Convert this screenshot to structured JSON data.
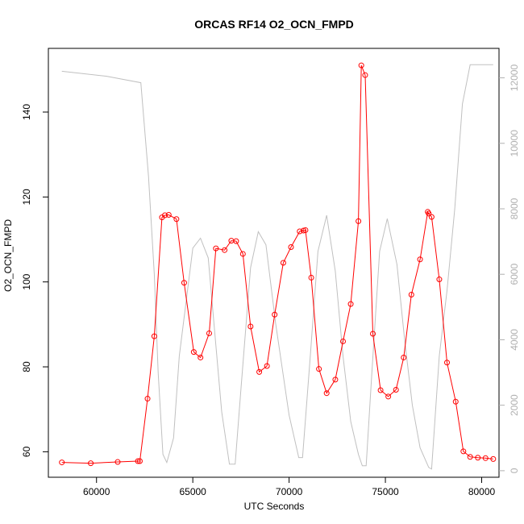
{
  "chart_data": {
    "type": "line",
    "title": "ORCAS RF14 O2_OCN_FMPD",
    "xlabel": "UTC Seconds",
    "ylabel": "O2_OCN_FMPD",
    "xlim": [
      57500,
      80900
    ],
    "ylim": [
      54,
      155
    ],
    "y2lim": [
      -200,
      12900
    ],
    "x_ticks": [
      60000,
      65000,
      70000,
      75000,
      80000
    ],
    "y_ticks": [
      60,
      80,
      100,
      120,
      140
    ],
    "y2_ticks": [
      0,
      2000,
      4000,
      6000,
      8000,
      10000,
      12000
    ],
    "grid": false,
    "series": [
      {
        "color": "#ff0000",
        "axis": "left",
        "marker": "open-circle",
        "x": [
          58200,
          59700,
          61100,
          62150,
          62250,
          62650,
          63000,
          63400,
          63550,
          63750,
          64150,
          64550,
          65050,
          65400,
          65850,
          66200,
          66650,
          67000,
          67250,
          67600,
          68000,
          68450,
          68850,
          69250,
          69700,
          70100,
          70550,
          70750,
          70850,
          71150,
          71550,
          71950,
          72400,
          72800,
          73200,
          73600,
          73750,
          73950,
          74350,
          74750,
          75150,
          75550,
          75950,
          76350,
          76800,
          77200,
          77250,
          77400,
          77800,
          78200,
          78650,
          79050,
          79400,
          79800,
          80200,
          80600
        ],
        "y": [
          57.5,
          57.3,
          57.6,
          57.8,
          57.8,
          72.5,
          87.2,
          115.2,
          115.7,
          115.8,
          114.8,
          99.8,
          83.5,
          82.2,
          87.9,
          107.9,
          107.5,
          109.7,
          109.6,
          106.6,
          89.5,
          78.8,
          80.2,
          92.3,
          104.5,
          108.2,
          111.9,
          112.1,
          112.2,
          101.0,
          79.5,
          73.8,
          77.0,
          86.0,
          94.8,
          114.3,
          151.0,
          148.7,
          87.8,
          74.5,
          73.0,
          74.6,
          82.2,
          97.0,
          105.3,
          116.5,
          116.1,
          115.3,
          100.6,
          81.0,
          71.8,
          60.1,
          58.8,
          58.6,
          58.5,
          58.3
        ]
      },
      {
        "color": "#c0c0c0",
        "axis": "right",
        "marker": "none",
        "x": [
          58200,
          60500,
          62300,
          62700,
          63000,
          63200,
          63450,
          63650,
          64000,
          64300,
          65000,
          65400,
          65800,
          66100,
          66500,
          66900,
          67200,
          67500,
          68000,
          68400,
          68800,
          69300,
          70000,
          70500,
          70700,
          71100,
          71500,
          71950,
          72400,
          72800,
          73200,
          73600,
          73800,
          74000,
          74300,
          74700,
          75100,
          75600,
          76000,
          76400,
          76800,
          77250,
          77400,
          77800,
          78200,
          78600,
          79000,
          79400,
          80600
        ],
        "y": [
          12200,
          12050,
          11850,
          9000,
          6000,
          3000,
          500,
          250,
          1000,
          3500,
          6800,
          7100,
          6500,
          4500,
          1800,
          200,
          200,
          2500,
          6200,
          7300,
          6900,
          4500,
          1700,
          400,
          400,
          3500,
          6700,
          7800,
          6100,
          3500,
          1500,
          500,
          150,
          150,
          3000,
          6700,
          7700,
          6300,
          4000,
          2000,
          700,
          100,
          50,
          3500,
          5500,
          8000,
          11200,
          12400,
          12400
        ]
      }
    ]
  }
}
